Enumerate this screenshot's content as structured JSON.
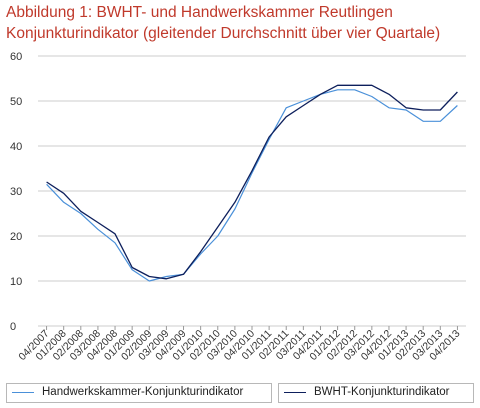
{
  "title_line1": "Abbildung 1: BWHT- und Handwerkskammer  Reutlingen",
  "title_line2": "Konjunkturindikator (gleitender Durchschnitt über vier Quartale)",
  "colors": {
    "title": "#c0392b",
    "hwk": "#4a90d9",
    "bwht": "#0d1f5c",
    "grid": "#cccccc"
  },
  "chart_data": {
    "type": "line",
    "title": "Abbildung 1: BWHT- und Handwerkskammer  Reutlingen Konjunkturindikator (gleitender Durchschnitt über vier Quartale)",
    "xlabel": "",
    "ylabel": "",
    "ylim": [
      0,
      60
    ],
    "yticks": [
      0,
      10,
      20,
      30,
      40,
      50,
      60
    ],
    "grid": true,
    "legend": "bottom",
    "categories": [
      "04/2007",
      "01/2008",
      "02/2008",
      "03/2008",
      "04/2008",
      "01/2009",
      "02/2009",
      "03/2009",
      "04/2009",
      "01/2010",
      "02/2010",
      "03/2010",
      "04/2010",
      "01/2011",
      "02/2011",
      "03/2011",
      "04/2011",
      "01/2012",
      "02/2012",
      "03/2012",
      "04/2012",
      "01/2013",
      "02/2013",
      "03/2013",
      "04/2013"
    ],
    "series": [
      {
        "name": "Handwerkskammer-Konjunkturindikator",
        "values": [
          31.5,
          27.5,
          25,
          21.5,
          18.5,
          12.5,
          10,
          11,
          11.5,
          16,
          20,
          26,
          34,
          41.5,
          48.5,
          50,
          51.5,
          52.5,
          52.5,
          51,
          48.5,
          48,
          45.5,
          45.5,
          49
        ]
      },
      {
        "name": "BWHT-Konjunkturindikator",
        "values": [
          32,
          29.5,
          25.5,
          23,
          20.5,
          13,
          11,
          10.5,
          11.5,
          16.5,
          22,
          27.5,
          34.5,
          42,
          46.5,
          49,
          51.5,
          53.5,
          53.5,
          53.5,
          51.5,
          48.5,
          48,
          48,
          52
        ]
      }
    ]
  }
}
